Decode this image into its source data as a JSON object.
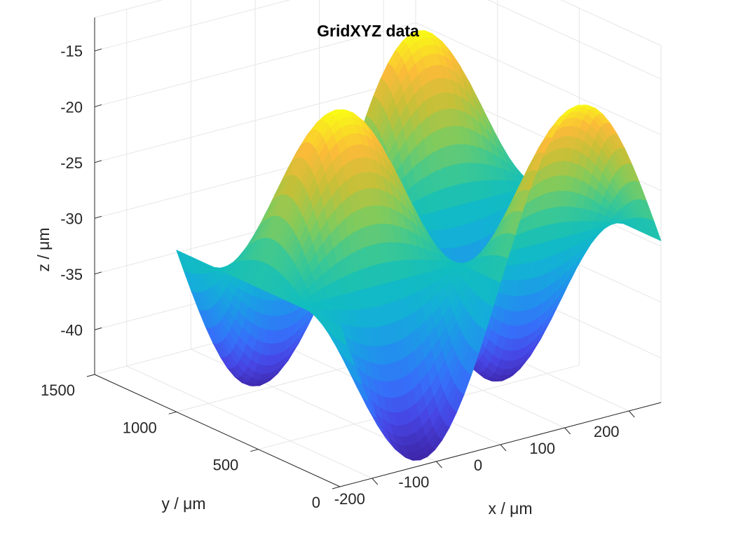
{
  "chart_data": {
    "type": "surface",
    "title": "GridXYZ data",
    "xlabel": "x / μm",
    "ylabel": "y / μm",
    "zlabel": "z / μm",
    "xlim": [
      -250,
      250
    ],
    "ylim": [
      0,
      1500
    ],
    "zlim": [
      -44,
      -12
    ],
    "x_ticks": [
      -200,
      -100,
      0,
      100,
      200
    ],
    "y_ticks": [
      0,
      500,
      1000,
      1500
    ],
    "z_ticks": [
      -40,
      -35,
      -30,
      -25,
      -20,
      -15
    ],
    "x_tick_labels": [
      "-200",
      "-100",
      "0",
      "100",
      "200"
    ],
    "y_tick_labels": [
      "0",
      "500",
      "1000",
      "1500"
    ],
    "z_tick_labels": [
      "-40",
      "-35",
      "-30",
      "-25",
      "-20",
      "-15"
    ],
    "grid": true,
    "colormap": "parula",
    "surface": {
      "description_formula": "z = -29.5 + 14 * cos(2*pi*y/1000) * sin(2*pi*x/500)",
      "z_center": -29.5,
      "amplitude": 14,
      "y_period": 1000,
      "x_period": 500
    }
  }
}
